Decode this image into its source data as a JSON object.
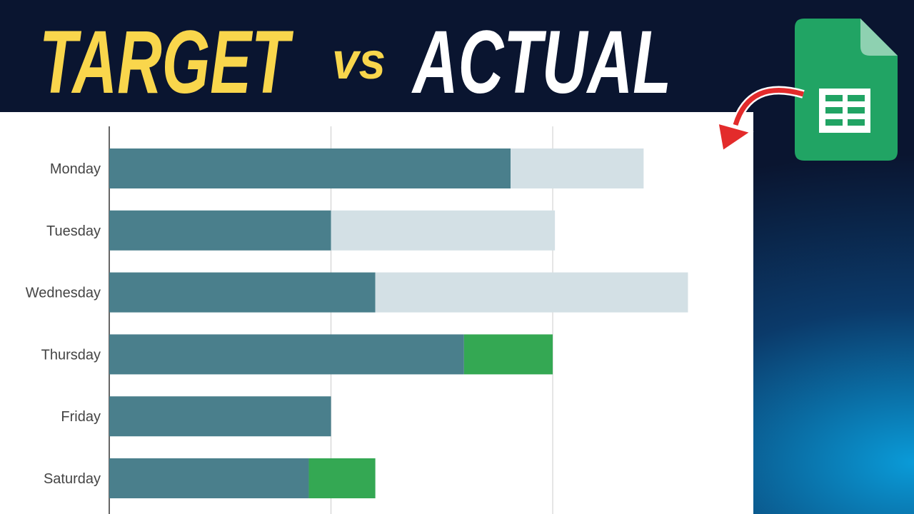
{
  "header": {
    "words": [
      "TARGET",
      "vs",
      "ACTUAL"
    ]
  },
  "chart_data": {
    "type": "stacked-bar-horizontal",
    "categories": [
      "Monday",
      "Tuesday",
      "Wednesday",
      "Thursday",
      "Friday",
      "Saturday"
    ],
    "series": [
      {
        "color": "#4a7f8c",
        "values": [
          181,
          100,
          120,
          160,
          100,
          90
        ]
      },
      {
        "color": "#d3e0e5",
        "values": [
          60,
          101,
          141,
          0,
          0,
          0
        ]
      },
      {
        "color": "#34a853",
        "values": [
          0,
          0,
          0,
          40,
          0,
          30
        ]
      }
    ],
    "xlim": [
      0,
      290
    ],
    "xticks": [
      0,
      100,
      200
    ],
    "grid": true,
    "tick_labels": false
  }
}
